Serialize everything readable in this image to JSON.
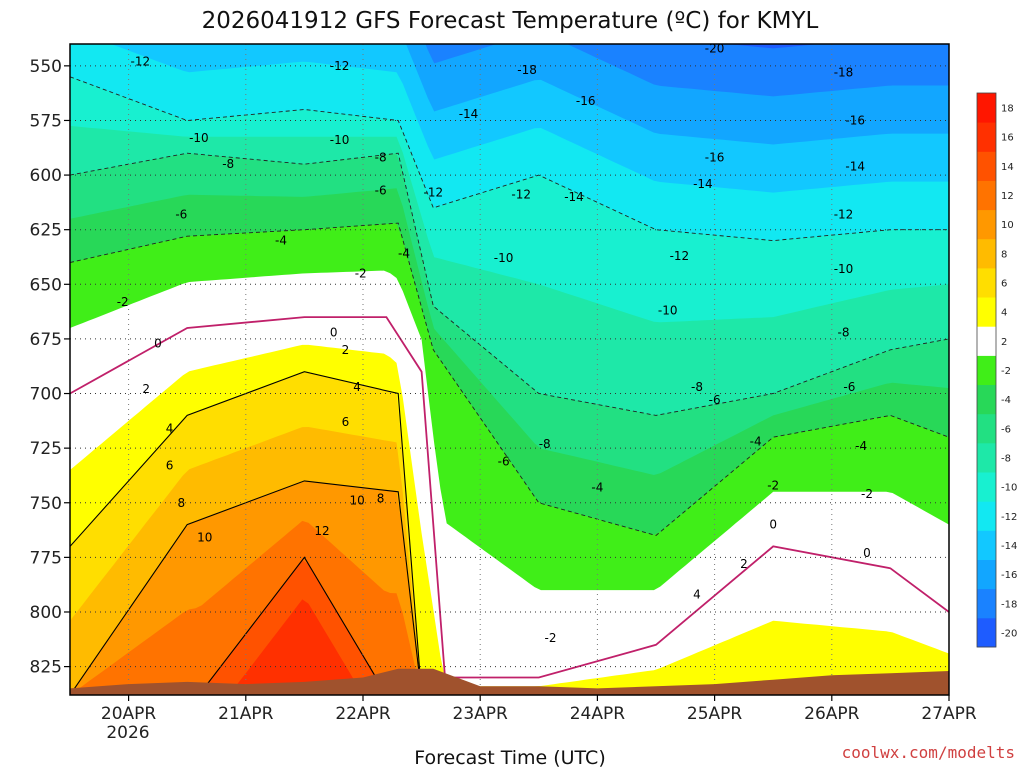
{
  "chart_data": {
    "type": "filled-contour",
    "title": "2026041912 GFS Forecast Temperature (ºC) for KMYL",
    "xlabel": "Forecast Time (UTC)",
    "ylabel": "",
    "credit": "coolwx.com/modelts",
    "x_ticks": [
      {
        "label": "20APR",
        "day": 20
      },
      {
        "label": "21APR",
        "day": 21
      },
      {
        "label": "22APR",
        "day": 22
      },
      {
        "label": "23APR",
        "day": 23
      },
      {
        "label": "24APR",
        "day": 24
      },
      {
        "label": "25APR",
        "day": 25
      },
      {
        "label": "26APR",
        "day": 26
      },
      {
        "label": "27APR",
        "day": 27
      }
    ],
    "x_year_label": "2026",
    "xlim": [
      19.5,
      27.0
    ],
    "y_ticks": [
      550,
      575,
      600,
      625,
      650,
      675,
      700,
      725,
      750,
      775,
      800,
      825
    ],
    "ylim": [
      540,
      838
    ],
    "y_axis_inverted": true,
    "colorbar": {
      "levels": [
        -20,
        -18,
        -16,
        -14,
        -12,
        -10,
        -8,
        -6,
        -4,
        -2,
        2,
        4,
        6,
        8,
        10,
        12,
        14,
        16,
        18
      ],
      "colors": [
        "#1e5cff",
        "#1a82ff",
        "#12a6ff",
        "#12c8ff",
        "#12e8f2",
        "#18f0d0",
        "#1ee8a8",
        "#22e082",
        "#28d858",
        "#40ee18",
        "#ffffff",
        "#ffff00",
        "#ffde00",
        "#ffbb00",
        "#ff9800",
        "#ff7300",
        "#ff5200",
        "#ff3000",
        "#ff1600"
      ]
    },
    "series": [
      {
        "name": "-12°C isotherm",
        "level": -12,
        "x": [
          19.5,
          20.5,
          21.5,
          22.3,
          22.6,
          23.5,
          24.5,
          25.5,
          26.5,
          27.0
        ],
        "p": [
          555,
          575,
          570,
          575,
          615,
          600,
          625,
          630,
          625,
          625
        ]
      },
      {
        "name": "-8°C isotherm",
        "level": -8,
        "x": [
          19.5,
          20.5,
          21.5,
          22.3,
          22.6,
          23.5,
          24.5,
          25.5,
          26.5,
          27.0
        ],
        "p": [
          600,
          590,
          595,
          590,
          660,
          700,
          710,
          700,
          680,
          675
        ]
      },
      {
        "name": "-4°C isotherm",
        "level": -4,
        "x": [
          19.5,
          20.5,
          21.5,
          22.3,
          22.6,
          23.5,
          24.5,
          25.5,
          26.5,
          27.0
        ],
        "p": [
          640,
          628,
          625,
          622,
          680,
          750,
          765,
          720,
          710,
          720
        ]
      },
      {
        "name": "0°C isotherm",
        "level": 0,
        "x": [
          19.5,
          20.5,
          21.5,
          22.2,
          22.5,
          22.7,
          23.5,
          24.5,
          25.5,
          26.5,
          27.0
        ],
        "p": [
          700,
          670,
          665,
          665,
          690,
          830,
          830,
          815,
          770,
          780,
          800
        ]
      },
      {
        "name": "4°C isotherm",
        "level": 4,
        "x": [
          19.5,
          20.5,
          21.5,
          22.3,
          22.5
        ],
        "p": [
          770,
          710,
          690,
          700,
          838
        ]
      },
      {
        "name": "8°C isotherm",
        "level": 8,
        "x": [
          19.5,
          20.5,
          21.5,
          22.3,
          22.5
        ],
        "p": [
          838,
          760,
          740,
          745,
          838
        ]
      },
      {
        "name": "12°C isotherm",
        "level": 12,
        "x": [
          20.6,
          21.5,
          22.2
        ],
        "p": [
          838,
          775,
          838
        ]
      }
    ],
    "contour_labels": [
      {
        "text": "-20",
        "x": 25.0,
        "p": 542
      },
      {
        "text": "-18",
        "x": 23.4,
        "p": 552
      },
      {
        "text": "-18",
        "x": 26.1,
        "p": 553
      },
      {
        "text": "-16",
        "x": 23.9,
        "p": 566
      },
      {
        "text": "-16",
        "x": 26.2,
        "p": 575
      },
      {
        "text": "-16",
        "x": 25.0,
        "p": 592
      },
      {
        "text": "-14",
        "x": 22.9,
        "p": 572
      },
      {
        "text": "-14",
        "x": 26.2,
        "p": 596
      },
      {
        "text": "-14",
        "x": 24.9,
        "p": 604
      },
      {
        "text": "-14",
        "x": 23.8,
        "p": 610
      },
      {
        "text": "-12",
        "x": 20.1,
        "p": 548
      },
      {
        "text": "-12",
        "x": 21.8,
        "p": 550
      },
      {
        "text": "-12",
        "x": 22.6,
        "p": 608
      },
      {
        "text": "-12",
        "x": 23.35,
        "p": 609
      },
      {
        "text": "-12",
        "x": 26.1,
        "p": 618
      },
      {
        "text": "-12",
        "x": 24.7,
        "p": 637
      },
      {
        "text": "-10",
        "x": 20.6,
        "p": 583
      },
      {
        "text": "-10",
        "x": 21.8,
        "p": 584
      },
      {
        "text": "-10",
        "x": 23.2,
        "p": 638
      },
      {
        "text": "-10",
        "x": 26.1,
        "p": 643
      },
      {
        "text": "-10",
        "x": 24.6,
        "p": 662
      },
      {
        "text": "-8",
        "x": 20.85,
        "p": 595
      },
      {
        "text": "-8",
        "x": 22.15,
        "p": 592
      },
      {
        "text": "-8",
        "x": 26.1,
        "p": 672
      },
      {
        "text": "-8",
        "x": 24.85,
        "p": 697
      },
      {
        "text": "-8",
        "x": 23.55,
        "p": 723
      },
      {
        "text": "-6",
        "x": 20.45,
        "p": 618
      },
      {
        "text": "-6",
        "x": 22.15,
        "p": 607
      },
      {
        "text": "-6",
        "x": 26.15,
        "p": 697
      },
      {
        "text": "-6",
        "x": 25.0,
        "p": 703
      },
      {
        "text": "-6",
        "x": 23.2,
        "p": 731
      },
      {
        "text": "-4",
        "x": 21.3,
        "p": 630
      },
      {
        "text": "-4",
        "x": 22.35,
        "p": 636
      },
      {
        "text": "-4",
        "x": 25.35,
        "p": 722
      },
      {
        "text": "-4",
        "x": 26.25,
        "p": 724
      },
      {
        "text": "-4",
        "x": 24.0,
        "p": 743
      },
      {
        "text": "-2",
        "x": 19.95,
        "p": 658
      },
      {
        "text": "-2",
        "x": 21.98,
        "p": 645
      },
      {
        "text": "-2",
        "x": 25.5,
        "p": 742
      },
      {
        "text": "-2",
        "x": 26.3,
        "p": 746
      },
      {
        "text": "-2",
        "x": 23.6,
        "p": 812
      },
      {
        "text": "0",
        "x": 20.25,
        "p": 677
      },
      {
        "text": "0",
        "x": 21.75,
        "p": 672
      },
      {
        "text": "0",
        "x": 25.5,
        "p": 760
      },
      {
        "text": "0",
        "x": 26.3,
        "p": 773
      },
      {
        "text": "2",
        "x": 20.15,
        "p": 698
      },
      {
        "text": "2",
        "x": 21.85,
        "p": 680
      },
      {
        "text": "2",
        "x": 25.25,
        "p": 778
      },
      {
        "text": "4",
        "x": 20.35,
        "p": 716
      },
      {
        "text": "4",
        "x": 21.95,
        "p": 697
      },
      {
        "text": "4",
        "x": 24.85,
        "p": 792
      },
      {
        "text": "6",
        "x": 20.35,
        "p": 733
      },
      {
        "text": "6",
        "x": 21.85,
        "p": 713
      },
      {
        "text": "8",
        "x": 20.45,
        "p": 750
      },
      {
        "text": "8",
        "x": 22.15,
        "p": 748
      },
      {
        "text": "10",
        "x": 20.65,
        "p": 766
      },
      {
        "text": "10",
        "x": 21.95,
        "p": 749
      },
      {
        "text": "12",
        "x": 21.65,
        "p": 763
      }
    ],
    "terrain": {
      "x": [
        19.5,
        20.0,
        20.5,
        21.0,
        21.5,
        22.0,
        22.3,
        22.6,
        23.0,
        23.5,
        24.0,
        24.5,
        25.0,
        25.5,
        26.0,
        26.5,
        27.0
      ],
      "p": [
        835,
        833,
        832,
        833,
        832,
        830,
        826,
        826,
        834,
        834,
        835,
        834,
        833,
        831,
        829,
        828,
        827
      ]
    }
  }
}
